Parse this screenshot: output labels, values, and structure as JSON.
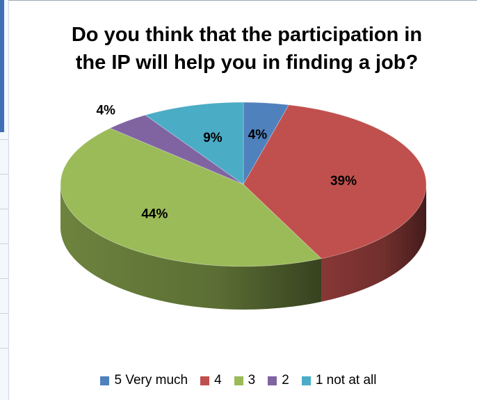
{
  "chart_data": {
    "type": "pie",
    "title": "Do you think that the participation in\nthe IP will help you in finding a job?",
    "categories": [
      "5 Very much",
      "4",
      "3",
      "2",
      "1 not at all"
    ],
    "values": [
      4,
      39,
      44,
      4,
      9
    ],
    "labels": [
      "4%",
      "39%",
      "44%",
      "4%",
      "9%"
    ],
    "colors": [
      "#4f81bd",
      "#c0504d",
      "#9bbb59",
      "#8064a2",
      "#4bacc6"
    ],
    "style": "3d",
    "legend_position": "bottom"
  }
}
